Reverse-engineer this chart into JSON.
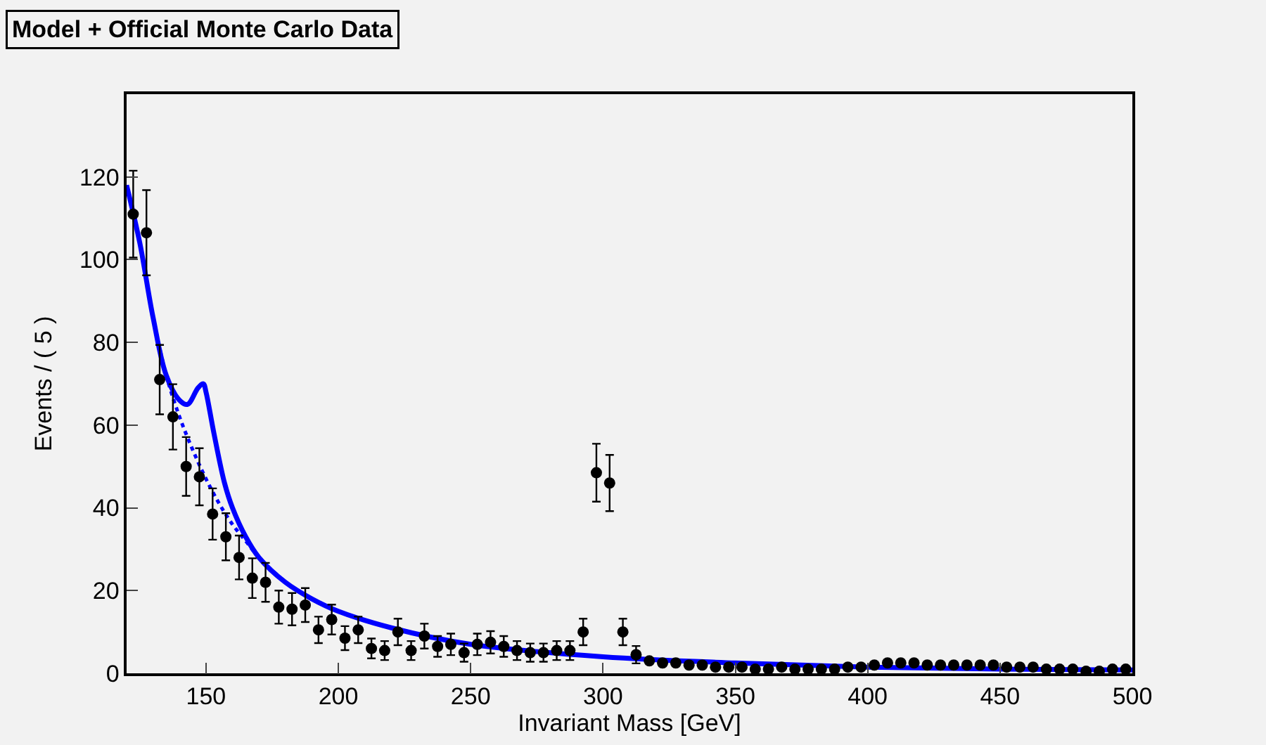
{
  "chart_data": {
    "type": "scatter",
    "title": "Model + Official Monte Carlo Data",
    "xlabel": "Invariant Mass [GeV]",
    "ylabel": "Events / ( 5 )",
    "xlim": [
      120,
      500
    ],
    "xticks": [
      150,
      200,
      250,
      300,
      350,
      400,
      450,
      500
    ],
    "ylim": [
      0,
      140
    ],
    "yticks": [
      0,
      20,
      40,
      60,
      80,
      100,
      120
    ],
    "grid": false,
    "series": [
      {
        "color": "#000000",
        "marker": "circle",
        "x": [
          122.5,
          127.5,
          132.5,
          137.5,
          142.5,
          147.5,
          152.5,
          157.5,
          162.5,
          167.5,
          172.5,
          177.5,
          182.5,
          187.5,
          192.5,
          197.5,
          202.5,
          207.5,
          212.5,
          217.5,
          222.5,
          227.5,
          232.5,
          237.5,
          242.5,
          247.5,
          252.5,
          257.5,
          262.5,
          267.5,
          272.5,
          277.5,
          282.5,
          287.5,
          292.5,
          297.5,
          302.5,
          307.5,
          312.5,
          317.5,
          322.5,
          327.5,
          332.5,
          337.5,
          342.5,
          347.5,
          352.5,
          357.5,
          362.5,
          367.5,
          372.5,
          377.5,
          382.5,
          387.5,
          392.5,
          397.5,
          402.5,
          407.5,
          412.5,
          417.5,
          422.5,
          427.5,
          432.5,
          437.5,
          442.5,
          447.5,
          452.5,
          457.5,
          462.5,
          467.5,
          472.5,
          477.5,
          482.5,
          487.5,
          492.5,
          497.5
        ],
        "values": [
          111,
          106.5,
          71,
          62,
          50,
          47.5,
          38.5,
          33,
          28,
          23,
          22,
          16,
          15.5,
          16.5,
          10.5,
          13,
          8.5,
          10.5,
          6,
          5.5,
          10,
          5.5,
          9,
          6.5,
          7,
          5,
          7,
          7.5,
          6.5,
          5.5,
          5,
          5,
          5.5,
          5.5,
          10,
          48.5,
          46,
          10,
          4.5,
          3,
          2.5,
          2.5,
          2,
          2,
          1.5,
          1.5,
          1.5,
          1,
          1,
          1.5,
          1,
          1,
          1,
          1,
          1.5,
          1.5,
          2,
          2.5,
          2.5,
          2.5,
          2,
          2,
          2,
          2,
          2,
          2,
          1.5,
          1.5,
          1.5,
          1,
          1,
          1,
          0.5,
          0.5,
          1,
          1
        ],
        "errors": [
          10.5,
          10.3,
          8.4,
          7.9,
          7.1,
          6.9,
          6.2,
          5.7,
          5.3,
          4.8,
          4.7,
          4,
          3.9,
          4.1,
          3.2,
          3.6,
          2.9,
          3.2,
          2.4,
          2.3,
          3.2,
          2.3,
          3,
          2.5,
          2.6,
          2.2,
          2.6,
          2.7,
          2.5,
          2.3,
          2.2,
          2.2,
          2.3,
          2.3,
          3.2,
          7,
          6.8,
          3.2,
          2.1,
          null,
          null,
          null,
          null,
          null,
          null,
          null,
          null,
          null,
          null,
          null,
          null,
          null,
          null,
          null,
          null,
          null,
          null,
          null,
          null,
          null,
          null,
          null,
          null,
          null,
          null,
          null,
          null,
          null,
          null,
          null,
          null,
          null,
          null,
          null,
          null,
          null
        ]
      },
      {
        "type": "line",
        "color": "#0000ff",
        "line_style": "dotted",
        "x": [
          120,
          125,
          130,
          135,
          140,
          145,
          150,
          155,
          160,
          165,
          170,
          180
        ],
        "values": [
          118,
          104,
          86,
          72,
          62,
          54,
          47,
          41,
          36,
          32,
          28,
          22
        ]
      },
      {
        "type": "line",
        "color": "#0000ff",
        "line_style": "solid",
        "x": [
          120,
          125,
          130,
          135,
          140,
          143,
          147,
          149,
          150,
          153,
          157,
          160,
          165,
          170,
          180,
          190,
          200,
          220,
          250,
          300,
          350,
          400,
          450,
          500
        ],
        "values": [
          118,
          104,
          86,
          72,
          66,
          65,
          69,
          70,
          68,
          58,
          46,
          40,
          33,
          28,
          22,
          18,
          15,
          11,
          7,
          4,
          2.5,
          1.5,
          1,
          0.8
        ]
      }
    ]
  }
}
